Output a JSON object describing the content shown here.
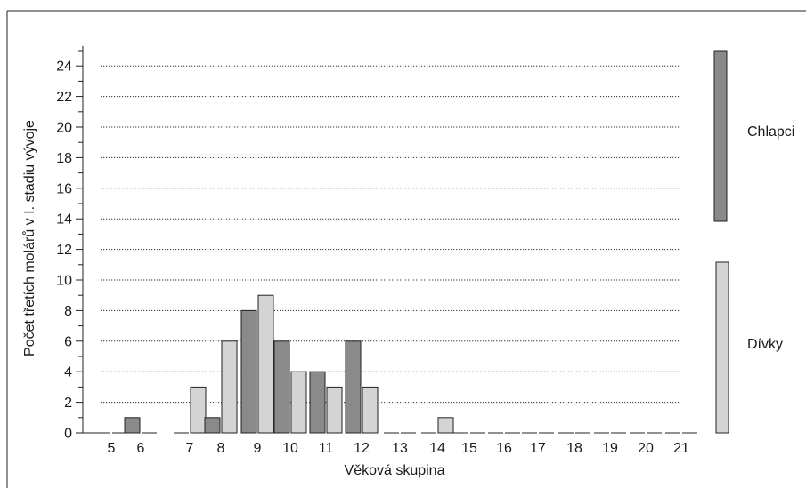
{
  "chart_data": {
    "type": "bar",
    "title": "",
    "xlabel": "Věková skupina",
    "ylabel": "Počet třetích molárů v I. stadiu vývoje",
    "ylim": [
      0,
      25
    ],
    "yticks": [
      0,
      2,
      4,
      6,
      8,
      10,
      12,
      14,
      16,
      18,
      20,
      22,
      24
    ],
    "grid": "horizontal dotted",
    "legend_placement": "right",
    "categories": [
      "5",
      "6",
      "7",
      "8",
      "9",
      "10",
      "11",
      "12",
      "13",
      "14",
      "15",
      "16",
      "17",
      "18",
      "19",
      "20",
      "21"
    ],
    "series": [
      {
        "name": "Chlapci",
        "color": "#8a8a8a",
        "values": [
          0,
          1,
          0,
          1,
          8,
          6,
          4,
          6,
          0,
          0,
          0,
          0,
          0,
          0,
          0,
          0,
          0
        ]
      },
      {
        "name": "Dívky",
        "color": "#d4d4d4",
        "values": [
          0,
          0,
          3,
          6,
          9,
          4,
          3,
          3,
          0,
          1,
          0,
          0,
          0,
          0,
          0,
          0,
          0
        ]
      }
    ]
  }
}
